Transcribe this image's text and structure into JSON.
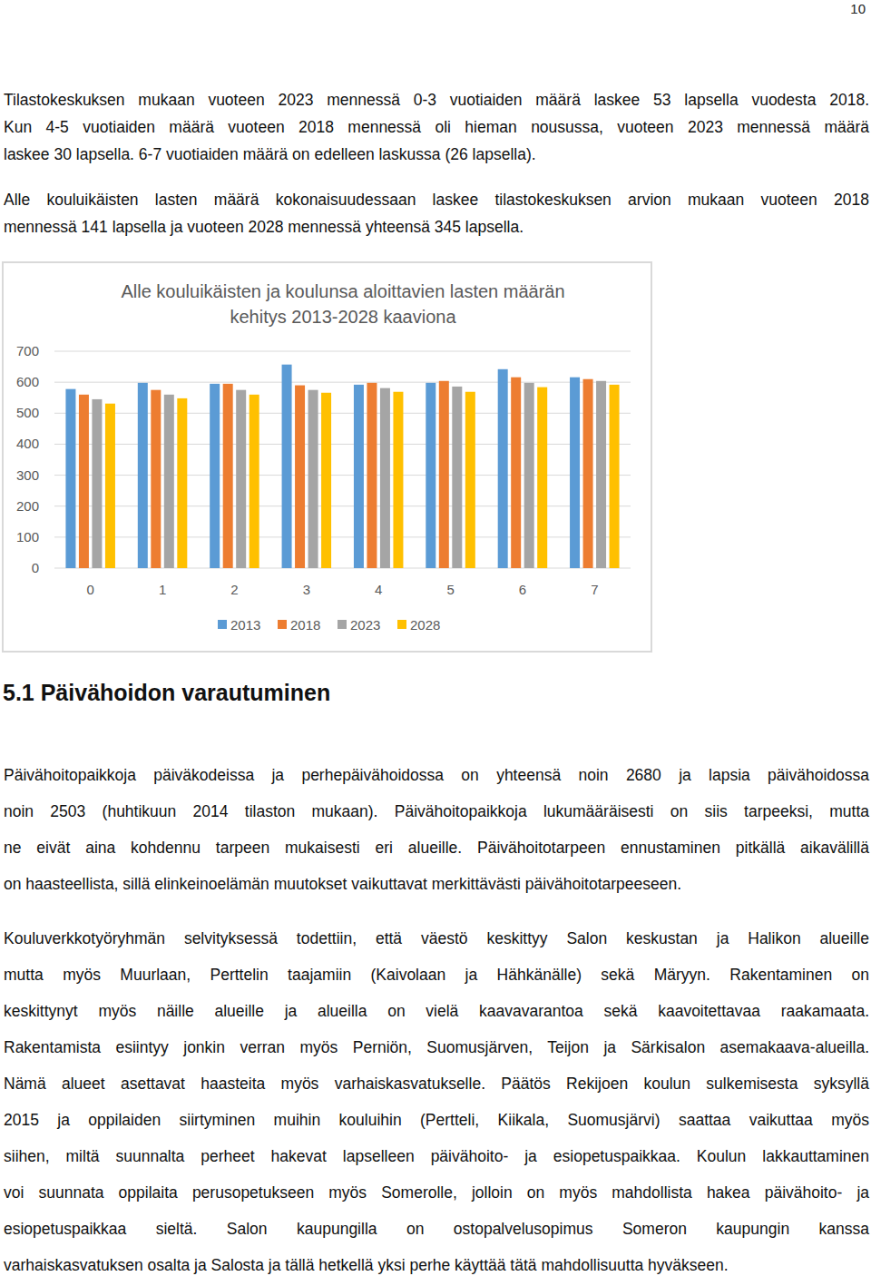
{
  "page_number": "10",
  "intro": [
    [
      "Tilastokeskuksen mukaan vuoteen 2023 mennessä 0-3 vuotiaiden määrä laskee 53 lapsella vuodesta 2018.",
      "Kun 4-5 vuotiaiden määrä vuoteen 2018 mennessä oli hieman nousussa, vuoteen 2023 mennessä määrä",
      "laskee 30 lapsella. 6-7 vuotiaiden määrä on edelleen laskussa (26 lapsella)."
    ],
    [
      "Alle kouluikäisten lasten määrä kokonaisuudessaan laskee tilastokeskuksen arvion mukaan vuoteen 2018",
      "mennessä 141 lapsella ja vuoteen 2028 mennessä yhteensä 345 lapsella."
    ]
  ],
  "chart_data": {
    "type": "bar",
    "title": "Alle kouluikäisten ja koulunsa aloittavien lasten määrän\nkehitys 2013-2028 kaaviona",
    "categories": [
      "0",
      "1",
      "2",
      "3",
      "4",
      "5",
      "6",
      "7"
    ],
    "series": [
      {
        "name": "2013",
        "color": "#5b9bd5",
        "values": [
          578,
          598,
          595,
          657,
          592,
          598,
          642,
          616
        ]
      },
      {
        "name": "2018",
        "color": "#ed7d31",
        "values": [
          560,
          575,
          595,
          590,
          598,
          604,
          616,
          610
        ]
      },
      {
        "name": "2023",
        "color": "#a5a5a5",
        "values": [
          545,
          560,
          575,
          575,
          581,
          586,
          598,
          604
        ]
      },
      {
        "name": "2028",
        "color": "#ffc000",
        "values": [
          531,
          548,
          560,
          566,
          569,
          569,
          584,
          592
        ]
      }
    ],
    "ylim": [
      0,
      700
    ],
    "yticks": [
      0,
      100,
      200,
      300,
      400,
      500,
      600,
      700
    ],
    "grid": true,
    "legend": "bottom"
  },
  "heading": "5.1 Päivähoidon varautuminen",
  "body": [
    [
      "Päivähoitopaikkoja päiväkodeissa ja perhepäivähoidossa on yhteensä noin 2680 ja lapsia päivähoidossa",
      "noin 2503 (huhtikuun 2014 tilaston mukaan). Päivähoitopaikkoja lukumääräisesti on siis tarpeeksi, mutta",
      "ne eivät aina kohdennu tarpeen mukaisesti eri alueille. Päivähoitotarpeen ennustaminen pitkällä aikavälillä",
      "on haasteellista, sillä elinkeinoelämän muutokset vaikuttavat merkittävästi päivähoitotarpeeseen."
    ],
    [
      "Kouluverkkotyöryhmän selvityksessä todettiin, että väestö keskittyy Salon keskustan ja Halikon alueille",
      "mutta myös Muurlaan, Perttelin taajamiin (Kaivolaan ja Hähkänälle) sekä Märyyn.  Rakentaminen on",
      "keskittynyt myös näille alueille ja alueilla on vielä kaavavarantoa sekä kaavoitettavaa raakamaata.",
      "Rakentamista esiintyy jonkin verran myös Perniön, Suomusjärven, Teijon ja Särkisalon asemakaava-alueilla.",
      "Nämä alueet asettavat haasteita myös varhaiskasvatukselle. Päätös Rekijoen koulun sulkemisesta syksyllä",
      "2015 ja oppilaiden siirtyminen muihin kouluihin (Pertteli, Kiikala, Suomusjärvi) saattaa vaikuttaa myös",
      "siihen, miltä suunnalta perheet hakevat lapselleen päivähoito- ja esiopetuspaikkaa. Koulun lakkauttaminen",
      "voi suunnata oppilaita perusopetukseen myös Somerolle, jolloin on myös mahdollista hakea päivähoito- ja",
      "esiopetuspaikkaa sieltä. Salon kaupungilla on ostopalvelusopimus Someron kaupungin kanssa",
      "varhaiskasvatuksen osalta ja Salosta ja tällä hetkellä yksi perhe käyttää tätä mahdollisuutta hyväkseen."
    ]
  ]
}
